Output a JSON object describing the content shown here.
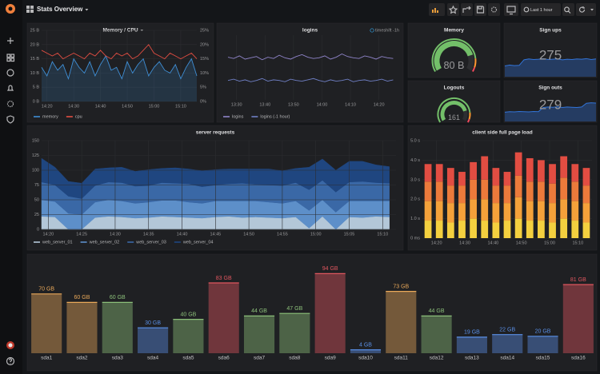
{
  "header": {
    "title": "Stats Overview",
    "time_range": "Last 1 hour"
  },
  "chart_data": [
    {
      "type": "line",
      "title": "Memory / CPU",
      "grid": true,
      "x": [
        "14:18",
        "14:20",
        "14:22",
        "14:24",
        "14:26",
        "14:28",
        "14:30",
        "14:32",
        "14:34",
        "14:36",
        "14:38",
        "14:40",
        "14:42",
        "14:44",
        "14:46",
        "14:48",
        "14:50",
        "14:52",
        "14:54",
        "14:56",
        "14:58",
        "15:00",
        "15:02",
        "15:04",
        "15:06",
        "15:08",
        "15:10",
        "15:12",
        "15:14",
        "15:16"
      ],
      "xlim": [
        "14:18",
        "15:16"
      ],
      "xticks": [
        "14:20",
        "14:30",
        "14:40",
        "14:50",
        "15:00",
        "15:10"
      ],
      "ylim": [
        0,
        25
      ],
      "yticks": [
        {
          "value": 0,
          "label": "0 B"
        },
        {
          "value": 5,
          "label": "5 B"
        },
        {
          "value": 10,
          "label": "10 B"
        },
        {
          "value": 15,
          "label": "15 B"
        },
        {
          "value": 20,
          "label": "20 B"
        },
        {
          "value": 25,
          "label": "25 B"
        }
      ],
      "y2lim": [
        0,
        25
      ],
      "y2ticks": [
        {
          "value": 0,
          "label": "0%"
        },
        {
          "value": 5,
          "label": "5%"
        },
        {
          "value": 10,
          "label": "10%"
        },
        {
          "value": 15,
          "label": "15%"
        },
        {
          "value": 20,
          "label": "20%"
        },
        {
          "value": 25,
          "label": "25%"
        }
      ],
      "series": [
        {
          "name": "memory",
          "color": "#3f8fd6",
          "area": true,
          "values": [
            12,
            9,
            14,
            11,
            13,
            8,
            15,
            12,
            10,
            14,
            9,
            13,
            16,
            11,
            12,
            8,
            14,
            10,
            13,
            15,
            9,
            12,
            14,
            11,
            10,
            13,
            8,
            12,
            15,
            9
          ]
        },
        {
          "name": "cpu",
          "color": "#e24d42",
          "axis": "y2",
          "values": [
            18,
            17,
            16,
            17,
            15,
            16,
            17,
            16,
            15,
            17,
            16,
            18,
            16,
            15,
            17,
            16,
            17,
            15,
            16,
            18,
            20,
            17,
            16,
            15,
            17,
            16,
            15,
            16,
            17,
            15
          ]
        }
      ]
    },
    {
      "type": "line",
      "title": "logins",
      "annotation": "timeshift -1h",
      "grid": true,
      "x": [
        "13:27",
        "13:29",
        "13:31",
        "13:33",
        "13:35",
        "13:37",
        "13:39",
        "13:41",
        "13:43",
        "13:45",
        "13:47",
        "13:49",
        "13:51",
        "13:53",
        "13:55",
        "13:57",
        "13:59",
        "14:01",
        "14:03",
        "14:05",
        "14:07",
        "14:09",
        "14:11",
        "14:13",
        "14:15",
        "14:17",
        "14:19",
        "14:21",
        "14:23",
        "14:25"
      ],
      "xlim": [
        "13:27",
        "14:26"
      ],
      "xticks": [
        "13:30",
        "13:40",
        "13:50",
        "14:00",
        "14:10",
        "14:20"
      ],
      "ylim": [
        0,
        100
      ],
      "series": [
        {
          "name": "logins",
          "color": "#8f84c9",
          "values": [
            66,
            64,
            68,
            63,
            65,
            67,
            62,
            66,
            64,
            69,
            65,
            63,
            67,
            70,
            66,
            64,
            65,
            68,
            63,
            66,
            71,
            67,
            65,
            64,
            68,
            66,
            63,
            67,
            65,
            64
          ]
        },
        {
          "name": "logins (-1 hour)",
          "color": "#6f7fc4",
          "values": [
            30,
            32,
            29,
            31,
            28,
            30,
            33,
            29,
            31,
            30,
            28,
            32,
            30,
            29,
            31,
            33,
            30,
            28,
            31,
            29,
            30,
            32,
            28,
            30,
            31,
            29,
            30,
            32,
            29,
            31
          ]
        }
      ]
    },
    {
      "type": "gauge",
      "title": "Memory",
      "value": 80,
      "value_label": "80 B",
      "range": [
        0,
        100
      ],
      "thresholds": [
        {
          "value": 0,
          "color": "#73bf69"
        },
        {
          "value": 85,
          "color": "#ff9830"
        },
        {
          "value": 95,
          "color": "#f2495c"
        }
      ]
    },
    {
      "type": "stat",
      "title": "Sign ups",
      "value": 275,
      "color": "#5cc4b0",
      "sparkline": {
        "color": "#3274d9",
        "ylim": [
          0,
          100
        ],
        "values": [
          35,
          38,
          36,
          37,
          55,
          58,
          56,
          57,
          59,
          56,
          57,
          58,
          55,
          57,
          56,
          58,
          57,
          59,
          56,
          58
        ]
      }
    },
    {
      "type": "gauge",
      "title": "Logouts",
      "value": 161,
      "range": [
        0,
        200
      ],
      "thresholds": [
        {
          "value": 0,
          "color": "#73bf69"
        },
        {
          "value": 170,
          "color": "#ff9830"
        },
        {
          "value": 190,
          "color": "#f2495c"
        }
      ]
    },
    {
      "type": "stat",
      "title": "Sign outs",
      "value": 279,
      "color": "#5cc4b0",
      "sparkline": {
        "color": "#3274d9",
        "ylim": [
          0,
          100
        ],
        "values": [
          40,
          42,
          41,
          43,
          42,
          41,
          43,
          42,
          60,
          62,
          61,
          63,
          60,
          62,
          61,
          60,
          62,
          78,
          80,
          79
        ]
      }
    },
    {
      "type": "area",
      "stacked": true,
      "title": "server requests",
      "grid": true,
      "x": [
        "14:19",
        "14:21",
        "14:23",
        "14:25",
        "14:27",
        "14:29",
        "14:31",
        "14:33",
        "14:35",
        "14:37",
        "14:39",
        "14:41",
        "14:43",
        "14:45",
        "14:47",
        "14:49",
        "14:51",
        "14:53",
        "14:55",
        "14:57",
        "14:59",
        "15:01",
        "15:03",
        "15:05",
        "15:07",
        "15:09",
        "15:11"
      ],
      "xlim": [
        "14:19",
        "15:12"
      ],
      "xticks": [
        "14:20",
        "14:25",
        "14:30",
        "14:35",
        "14:40",
        "14:45",
        "14:50",
        "14:55",
        "15:00",
        "15:05",
        "15:10"
      ],
      "ylim": [
        0,
        150
      ],
      "yticks": [
        0,
        25,
        50,
        75,
        100,
        125,
        150
      ],
      "series": [
        {
          "name": "web_server_01",
          "color": "#b3c7d8",
          "values": [
            22,
            21,
            0,
            0,
            20,
            22,
            21,
            19,
            20,
            22,
            21,
            20,
            19,
            21,
            22,
            20,
            21,
            20,
            19,
            21,
            2,
            22,
            0,
            21,
            20,
            22,
            21
          ]
        },
        {
          "name": "web_server_02",
          "color": "#5d8fc9",
          "values": [
            28,
            26,
            27,
            25,
            26,
            28,
            27,
            25,
            26,
            27,
            28,
            26,
            25,
            27,
            26,
            28,
            27,
            26,
            25,
            27,
            30,
            28,
            29,
            27,
            28,
            26,
            27
          ]
        },
        {
          "name": "web_server_03",
          "color": "#3a68a6",
          "values": [
            30,
            28,
            29,
            27,
            28,
            30,
            31,
            29,
            28,
            30,
            29,
            31,
            28,
            27,
            29,
            30,
            28,
            29,
            30,
            31,
            35,
            33,
            34,
            32,
            33,
            31,
            30
          ]
        },
        {
          "name": "web_server_04",
          "color": "#1f4680",
          "values": [
            40,
            30,
            25,
            26,
            28,
            24,
            26,
            25,
            27,
            24,
            26,
            25,
            27,
            26,
            25,
            24,
            26,
            27,
            25,
            24,
            38,
            36,
            37,
            35,
            34,
            30,
            28
          ]
        }
      ]
    },
    {
      "type": "bar",
      "stacked": true,
      "title": "client side full page load",
      "grid": true,
      "x": [
        "14:17",
        "14:21",
        "14:25",
        "14:29",
        "14:33",
        "14:37",
        "14:41",
        "14:45",
        "14:49",
        "14:53",
        "14:57",
        "15:01",
        "15:05",
        "15:09",
        "15:13"
      ],
      "xlim": [
        "14:15",
        "15:15"
      ],
      "xticks": [
        "14:20",
        "14:30",
        "14:40",
        "14:50",
        "15:00",
        "15:10"
      ],
      "ylim": [
        0,
        5
      ],
      "yticks": [
        {
          "value": 0,
          "label": "0 ms"
        },
        {
          "value": 1,
          "label": "1.0 s"
        },
        {
          "value": 2,
          "label": "2.0 s"
        },
        {
          "value": 3,
          "label": "3.0 s"
        },
        {
          "value": 4,
          "label": "4.0 s"
        },
        {
          "value": 5,
          "label": "5.0 s"
        }
      ],
      "series": [
        {
          "color": "#f4d03f",
          "values": [
            0.9,
            0.9,
            0.8,
            0.9,
            1.0,
            0.9,
            0.8,
            0.9,
            1.0,
            0.9,
            0.9,
            0.8,
            1.0,
            0.9,
            0.8
          ]
        },
        {
          "color": "#f4a13a",
          "values": [
            1.0,
            1.0,
            1.0,
            0.9,
            1.0,
            1.1,
            1.0,
            0.9,
            1.1,
            1.0,
            1.0,
            1.0,
            1.0,
            1.0,
            1.0
          ]
        },
        {
          "color": "#ec7a3b",
          "values": [
            1.0,
            1.0,
            0.9,
            0.9,
            1.0,
            1.0,
            0.9,
            0.9,
            1.1,
            1.0,
            1.0,
            1.0,
            1.1,
            1.0,
            0.9
          ]
        },
        {
          "color": "#e24d42",
          "values": [
            0.9,
            0.9,
            0.9,
            0.7,
            0.9,
            1.2,
            0.9,
            0.7,
            1.2,
            1.2,
            1.1,
            1.0,
            1.1,
            0.9,
            0.9
          ]
        }
      ]
    },
    {
      "type": "bar",
      "ylim": [
        0,
        100
      ],
      "categories": [
        "sda1",
        "sda2",
        "sda3",
        "sda4",
        "sda5",
        "sda6",
        "sda7",
        "sda8",
        "sda9",
        "sda10",
        "sda11",
        "sda12",
        "sda13",
        "sda14",
        "sda15",
        "sda16"
      ],
      "values": [
        70,
        60,
        60,
        30,
        40,
        83,
        44,
        47,
        94,
        4,
        73,
        44,
        19,
        22,
        20,
        81
      ],
      "value_labels": [
        "70 GB",
        "60 GB",
        "60 GB",
        "30 GB",
        "40 GB",
        "83 GB",
        "44 GB",
        "47 GB",
        "94 GB",
        "4 GB",
        "73 GB",
        "44 GB",
        "19 GB",
        "22 GB",
        "20 GB",
        "81 GB"
      ],
      "colors": [
        "#eaa95a",
        "#eaa95a",
        "#8cc07a",
        "#5a8fe6",
        "#8cc07a",
        "#e0565f",
        "#8cc07a",
        "#8cc07a",
        "#e0565f",
        "#5a8fe6",
        "#eaa95a",
        "#8cc07a",
        "#5a8fe6",
        "#5a8fe6",
        "#5a8fe6",
        "#e0565f"
      ]
    }
  ]
}
